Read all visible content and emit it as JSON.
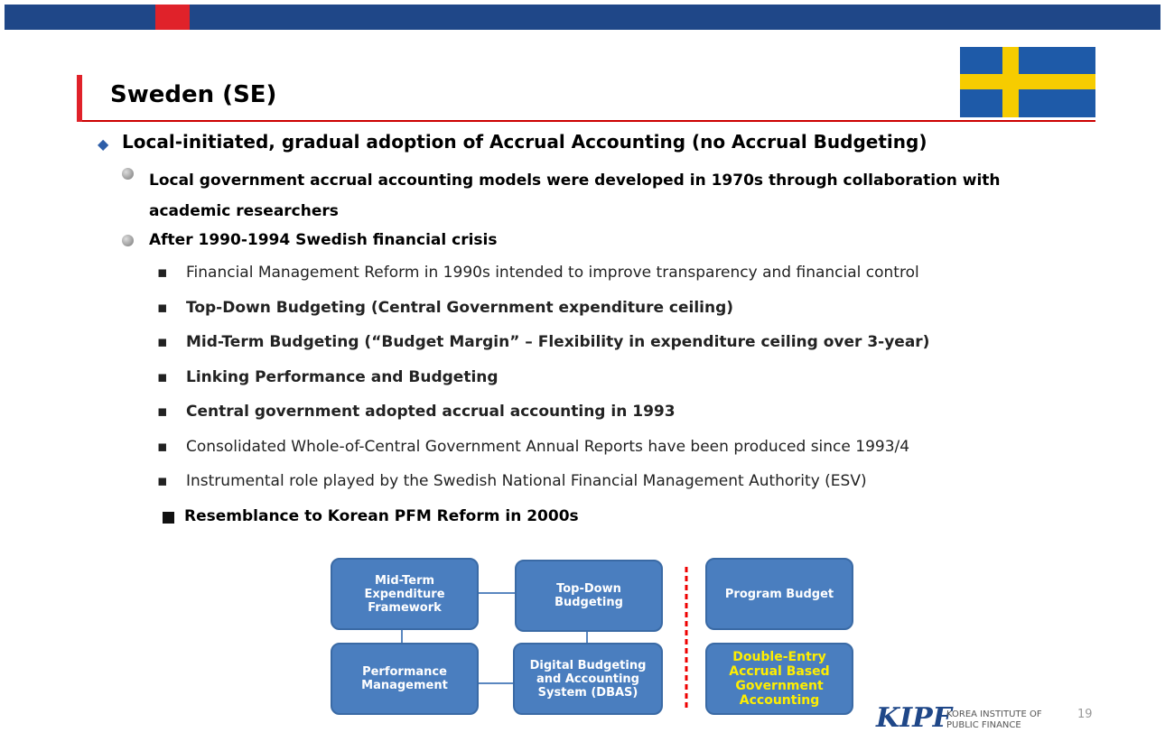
{
  "title": "Sweden (SE)",
  "heading": "Local-initiated, gradual adoption of Accrual Accounting (no Accrual Budgeting)",
  "points": [
    "Local government accrual accounting models were developed in 1970s through collaboration with academic researchers",
    "After 1990-1994 Swedish financial crisis"
  ],
  "items": [
    {
      "text": "Financial Management Reform in 1990s intended to improve transparency and financial control",
      "bold": false
    },
    {
      "text": "Top-Down Budgeting (Central Government expenditure ceiling)",
      "bold": true
    },
    {
      "text": "Mid-Term Budgeting (“Budget Margin” – Flexibility in expenditure ceiling over 3-year)",
      "bold": true
    },
    {
      "text": "Linking Performance and Budgeting",
      "bold": true
    },
    {
      "text": "Central government adopted accrual accounting in 1993",
      "bold": true
    },
    {
      "text": "Consolidated Whole-of-Central Government Annual Reports have been produced since 1993/4",
      "bold": false
    },
    {
      "text": "Instrumental role played by the Swedish National Financial Management Authority (ESV)",
      "bold": false
    }
  ],
  "resemblance": "Resemblance to Korean PFM Reform in 2000s",
  "diagram": {
    "nodes": [
      {
        "label": "Mid-Term Expenditure Framework"
      },
      {
        "label": "Top-Down Budgeting"
      },
      {
        "label": "Performance Management"
      },
      {
        "label": "Digital Budgeting and Accounting System (DBAS)"
      },
      {
        "label": "Program Budget"
      },
      {
        "label": "Double-Entry Accrual Based Government Accounting"
      }
    ]
  },
  "logo": {
    "mark": "KIPF",
    "name": "KOREA INSTITUTE OF PUBLIC FINANCE"
  },
  "page_number": "19"
}
